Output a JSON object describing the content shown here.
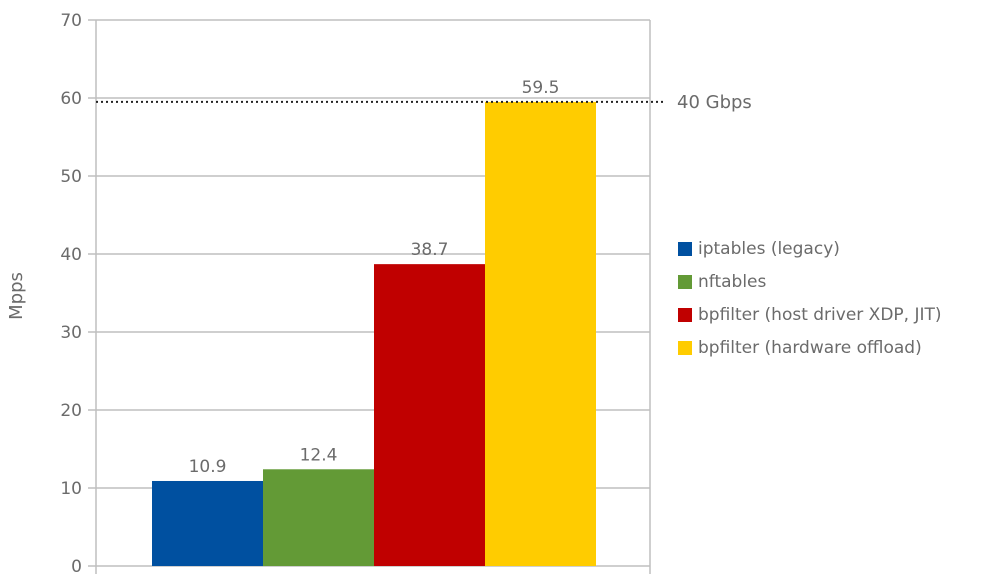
{
  "chart_data": {
    "type": "bar",
    "title": "",
    "xlabel": "",
    "ylabel": "Mpps",
    "ylim": [
      0,
      70
    ],
    "yticks": [
      0,
      10,
      20,
      30,
      40,
      50,
      60,
      70
    ],
    "grid": true,
    "legend_position": "right",
    "series": [
      {
        "name": "iptables (legacy)",
        "value": 10.9,
        "label": "10.9",
        "color": "#0050a0"
      },
      {
        "name": "nftables",
        "value": 12.4,
        "label": "12.4",
        "color": "#639a36"
      },
      {
        "name": "bpfilter (host driver XDP, JIT)",
        "value": 38.7,
        "label": "38.7",
        "color": "#c00000"
      },
      {
        "name": "bpfilter (hardware offload)",
        "value": 59.5,
        "label": "59.5",
        "color": "#ffcc00"
      }
    ],
    "reference_line": {
      "value": 59.5,
      "label": "40 Gbps",
      "style": "dotted"
    }
  }
}
